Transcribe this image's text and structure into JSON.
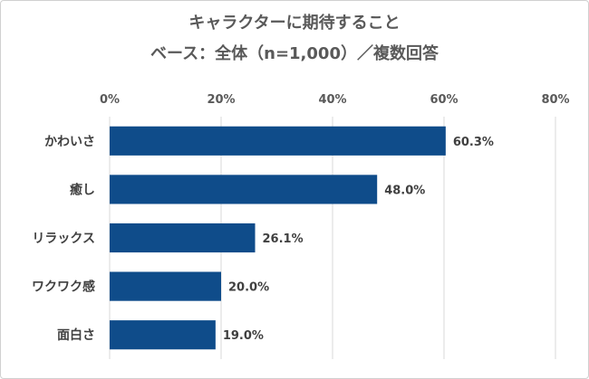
{
  "chart_data": {
    "type": "bar",
    "orientation": "horizontal",
    "title": "キャラクターに期待すること",
    "subtitle": "ベース：全体（n=1,000）／複数回答",
    "categories": [
      "かわいさ",
      "癒し",
      "リラックス",
      "ワクワク感",
      "面白さ"
    ],
    "values": [
      60.3,
      48.0,
      26.1,
      20.0,
      19.0
    ],
    "data_labels": [
      "60.3%",
      "48.0%",
      "26.1%",
      "20.0%",
      "19.0%"
    ],
    "xlim": [
      0,
      80
    ],
    "xticks": [
      "0%",
      "20%",
      "40%",
      "60%",
      "80%"
    ],
    "xtick_values": [
      0,
      20,
      40,
      60,
      80
    ],
    "xaxis_position": "top",
    "grid": true,
    "bar_color": "#0F4C8A",
    "grid_color": "#D9D9D9"
  }
}
